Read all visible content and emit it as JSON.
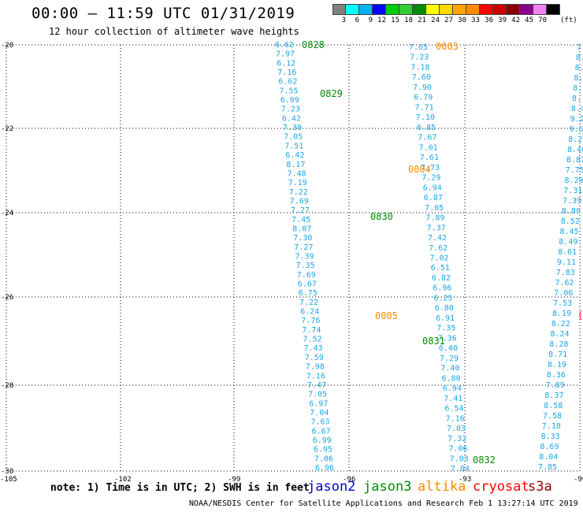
{
  "header": {
    "title": "00:00 – 11:59 UTC 01/31/2019",
    "subtitle": "12 hour collection of altimeter wave heights"
  },
  "colorbar": {
    "colors": [
      "#808080",
      "#00ffff",
      "#00b2ee",
      "#0000ff",
      "#00cd00",
      "#32cd32",
      "#008b00",
      "#ffff00",
      "#ffd700",
      "#ffa500",
      "#ff8c00",
      "#ff0000",
      "#cd0000",
      "#8b0000",
      "#8b008b",
      "#ee82ee",
      "#000000"
    ],
    "labels": [
      "3",
      "6",
      "9",
      "12",
      "15",
      "18",
      "21",
      "24",
      "27",
      "30",
      "33",
      "36",
      "39",
      "42",
      "45",
      "70"
    ],
    "unit": "(ft)"
  },
  "map": {
    "lat_labels": [
      "-20",
      "-22",
      "-24",
      "-26",
      "-28",
      "-30"
    ],
    "lon_labels": [
      "-105",
      "-102",
      "-99",
      "-96",
      "-93",
      "-90"
    ]
  },
  "colors": {
    "wave_value": "#1aa6e6",
    "jason2": "#0000cd",
    "jason3": "#008b00",
    "altika": "#ff8c00",
    "cryosat": "#ff0000",
    "s3a": "#8b0000",
    "dark_value": "#00008b"
  },
  "track_labels": [
    {
      "text": "0828",
      "sat": "jason3"
    },
    {
      "text": "0829",
      "sat": "jason3"
    },
    {
      "text": "0830",
      "sat": "jason3"
    },
    {
      "text": "0831",
      "sat": "jason3"
    },
    {
      "text": "0832",
      "sat": "jason3"
    },
    {
      "text": "0003",
      "sat": "altika"
    },
    {
      "text": "0004",
      "sat": "altika"
    },
    {
      "text": "0005",
      "sat": "altika"
    }
  ],
  "tracks": {
    "track_a": [
      "6.62",
      "7.97",
      "6.12",
      "7.16",
      "6.62",
      "7.55",
      "6.99",
      "7.23",
      "6.42",
      "7.30",
      "7.05",
      "7.51",
      "6.42",
      "8.17",
      "7.48",
      "7.19",
      "7.22",
      "7.69",
      "7.27",
      "7.45",
      "8.07",
      "7.30",
      "7.27",
      "7.39",
      "7.35",
      "7.69",
      "6.67",
      "6.75",
      "7.22",
      "6.24",
      "7.76",
      "7.74",
      "7.52",
      "7.43",
      "7.59",
      "7.98",
      "7.16",
      "7.47",
      "7.05",
      "6.97",
      "7.04",
      "7.63",
      "6.67",
      "6.99",
      "6.95",
      "7.06",
      "6.96"
    ],
    "track_b": [
      "7.65",
      "7.23",
      "7.18",
      "7.60",
      "7.90",
      "6.79",
      "7.71",
      "7.10",
      "6.85",
      "7.67",
      "7.01",
      "7.61",
      "7.73",
      "7.29",
      "6.94",
      "6.87",
      "7.05",
      "7.89",
      "7.37",
      "7.42",
      "7.62",
      "7.02",
      "6.51",
      "6.82",
      "6.96",
      "6.25",
      "6.80",
      "6.91",
      "7.35",
      "7.36",
      "6.40",
      "7.29",
      "7.40",
      "6.80",
      "6.94",
      "7.41",
      "6.54",
      "7.16",
      "7.03",
      "7.32",
      "7.06",
      "7.03",
      "7.04"
    ],
    "track_c": [
      "7.",
      "8.",
      "8.",
      "8.",
      "8.",
      "8.",
      "8.4",
      "9.2",
      "9.6",
      "8.2",
      "8.40",
      "8.87",
      "7.75",
      "8.29",
      "7.31",
      "7.39",
      "8.88",
      "8.52",
      "8.45",
      "8.49",
      "8.61",
      "9.11",
      "7.83",
      "7.62",
      "7.06",
      "7.53",
      "8.19",
      "8.22",
      "8.24",
      "8.28",
      "8.71",
      "8.19",
      "8.36",
      "7.89",
      "8.37",
      "8.58",
      "7.58",
      "7.18",
      "8.33",
      "8.69",
      "8.04",
      "7.85"
    ]
  },
  "edge_mark": "(",
  "footer": {
    "note": "note: 1) Time is in UTC; 2) SWH is in feet",
    "legend": [
      {
        "name": "jason2",
        "color": "#0000cd"
      },
      {
        "name": "jason3",
        "color": "#008b00"
      },
      {
        "name": "altika",
        "color": "#ff8c00"
      },
      {
        "name": "cryosat",
        "color": "#ff0000"
      },
      {
        "name": "s3a",
        "color": "#8b0000"
      }
    ],
    "credit": "NOAA/NESDIS Center for Satellite Applications and Research    Feb  1 13:27:14 UTC 2019"
  }
}
